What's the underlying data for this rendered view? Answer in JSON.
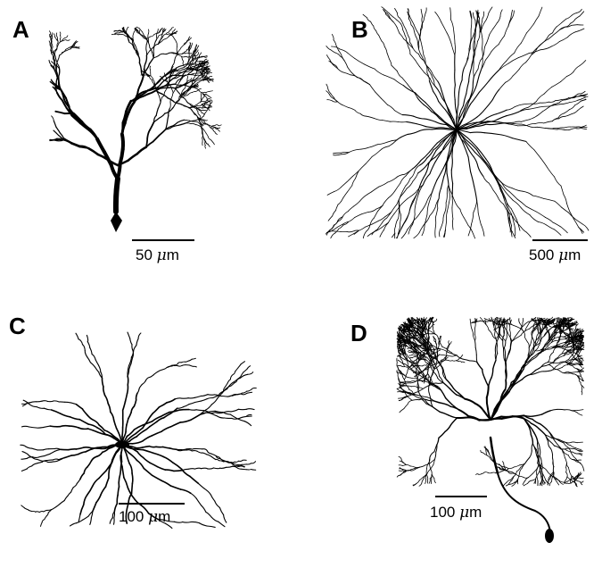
{
  "panels": [
    {
      "letter": "A",
      "scale_value": "50",
      "scale_unit": "m",
      "neuron": "purkinje-cell"
    },
    {
      "letter": "B",
      "scale_value": "500",
      "scale_unit": "m",
      "neuron": "radial-neuron"
    },
    {
      "letter": "C",
      "scale_value": "100",
      "scale_unit": "m",
      "neuron": "stellate-neuron"
    },
    {
      "letter": "D",
      "scale_value": "100",
      "scale_unit": "m",
      "neuron": "fan-dendrite-neuron"
    }
  ],
  "micro_symbol": "μ",
  "colors": {
    "ink": "#000000",
    "background": "#ffffff"
  }
}
